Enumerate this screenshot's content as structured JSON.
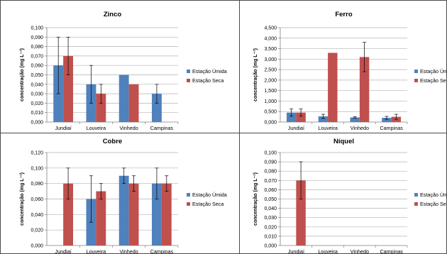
{
  "chart_data": [
    {
      "type": "bar",
      "title": "Zinco",
      "ylabel": "concentração (mg L⁻¹)",
      "categories": [
        "Jundiaí",
        "Louveira",
        "Vinhedo",
        "Campinas"
      ],
      "ylim": [
        0,
        0.1
      ],
      "ytick_step": 0.01,
      "ytick_decimals": 3,
      "legend_position": "right",
      "series": [
        {
          "name": "Estação Úmida",
          "color": "#4f81bd",
          "values": [
            0.06,
            0.04,
            0.05,
            0.03
          ],
          "err": [
            0.03,
            0.02,
            0.0,
            0.01
          ]
        },
        {
          "name": "Estação Seca",
          "color": "#c0504d",
          "values": [
            0.07,
            0.03,
            0.04,
            null
          ],
          "err": [
            0.02,
            0.01,
            0.0,
            null
          ]
        }
      ]
    },
    {
      "type": "bar",
      "title": "Ferro",
      "ylabel": "concentração (mg L⁻¹)",
      "categories": [
        "Jundiaí",
        "Louveira",
        "Vinhedo",
        "Campinas"
      ],
      "ylim": [
        0,
        4.5
      ],
      "ytick_step": 0.5,
      "ytick_decimals": 3,
      "legend_position": "right",
      "series": [
        {
          "name": "Estação Úmida",
          "color": "#4f81bd",
          "values": [
            0.45,
            0.27,
            0.22,
            0.2
          ],
          "err": [
            0.17,
            0.1,
            0.03,
            0.07
          ]
        },
        {
          "name": "Estação Seca",
          "color": "#c0504d",
          "values": [
            0.45,
            3.3,
            3.1,
            0.25
          ],
          "err": [
            0.17,
            0.0,
            0.7,
            0.12
          ]
        }
      ]
    },
    {
      "type": "bar",
      "title": "Cobre",
      "ylabel": "concentração (mg L⁻¹)",
      "categories": [
        "Jundiaí",
        "Louveira",
        "Vinhedo",
        "Campinas"
      ],
      "ylim": [
        0,
        0.12
      ],
      "ytick_step": 0.02,
      "ytick_decimals": 3,
      "legend_position": "right",
      "series": [
        {
          "name": "Estação Úmida",
          "color": "#4f81bd",
          "values": [
            null,
            0.06,
            0.09,
            0.08
          ],
          "err": [
            null,
            0.03,
            0.01,
            0.02
          ]
        },
        {
          "name": "Estação Seca",
          "color": "#c0504d",
          "values": [
            0.08,
            0.07,
            0.08,
            0.08
          ],
          "err": [
            0.02,
            0.01,
            0.01,
            0.01
          ]
        }
      ]
    },
    {
      "type": "bar",
      "title": "Níquel",
      "ylabel": "concentração (mg L⁻¹)",
      "categories": [
        "Jundiaí",
        "Louveira",
        "Vinhedo",
        "Campinas"
      ],
      "ylim": [
        0,
        0.1
      ],
      "ytick_step": 0.01,
      "ytick_decimals": 3,
      "legend_position": "right",
      "series": [
        {
          "name": "Estação Úmida",
          "color": "#4f81bd",
          "values": [
            null,
            null,
            null,
            null
          ],
          "err": [
            null,
            null,
            null,
            null
          ]
        },
        {
          "name": "Estação Seca",
          "color": "#c0504d",
          "values": [
            0.07,
            null,
            null,
            null
          ],
          "err": [
            0.02,
            null,
            null,
            null
          ]
        }
      ]
    }
  ]
}
